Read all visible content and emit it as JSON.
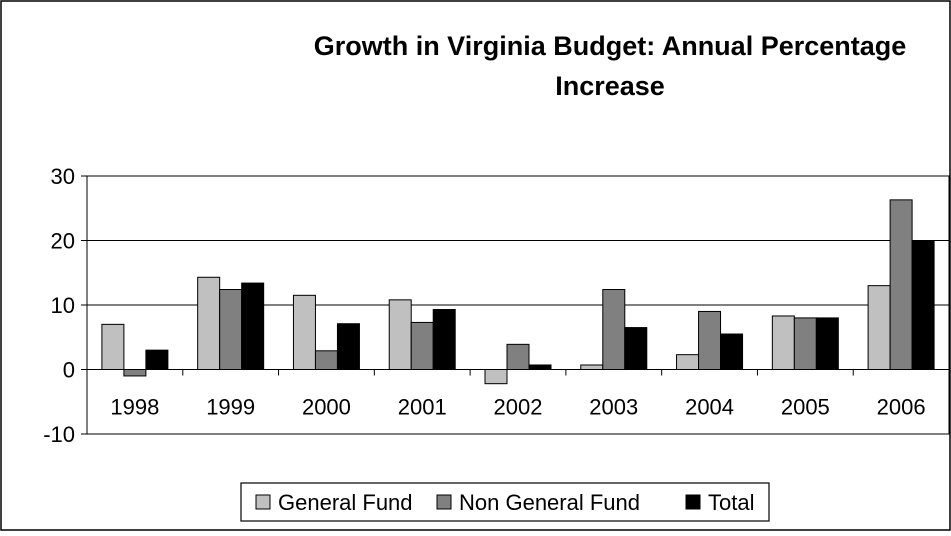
{
  "chart_data": {
    "type": "bar",
    "title": "Growth in Virginia Budget: Annual Percentage Increase",
    "title_lines": [
      "Growth in Virginia Budget: Annual Percentage",
      "Increase"
    ],
    "xlabel": "",
    "ylabel": "",
    "categories": [
      "1998",
      "1999",
      "2000",
      "2001",
      "2002",
      "2003",
      "2004",
      "2005",
      "2006"
    ],
    "series": [
      {
        "name": "General Fund",
        "color": "#c0c0c0",
        "values": [
          7.0,
          14.3,
          11.5,
          10.8,
          -2.2,
          0.7,
          2.3,
          8.3,
          13.0
        ]
      },
      {
        "name": "Non General Fund",
        "color": "#808080",
        "values": [
          -1.0,
          12.4,
          2.9,
          7.3,
          3.9,
          12.4,
          9.0,
          8.0,
          26.3
        ]
      },
      {
        "name": "Total",
        "color": "#000000",
        "values": [
          3.0,
          13.4,
          7.1,
          9.3,
          0.7,
          6.5,
          5.5,
          8.0,
          20.0
        ]
      }
    ],
    "ylim": [
      -10,
      30
    ],
    "yticks": [
      "30",
      "20",
      "10",
      "0",
      "-10"
    ],
    "ytick_values": [
      30,
      20,
      10,
      0,
      -10
    ],
    "grid": true,
    "legend_position": "bottom-center",
    "background": "#ffffff"
  }
}
